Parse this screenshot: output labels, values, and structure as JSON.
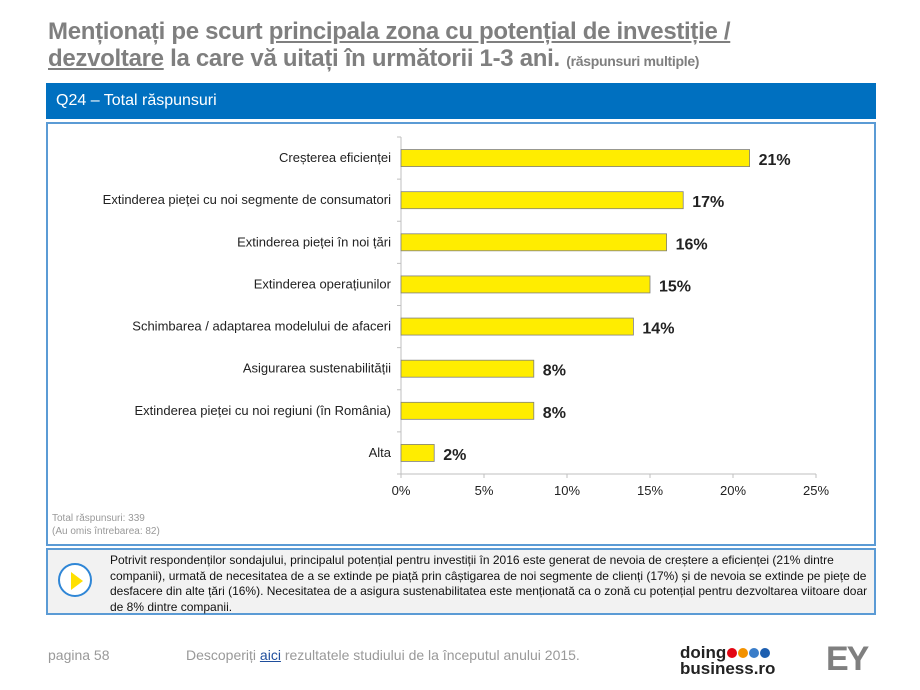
{
  "title": {
    "part1": "Menționați pe scurt ",
    "underlined1": "principala zona cu potențial de investiție / dezvoltare",
    "part2": " la care vă uitați în următorii 1-3 ani. ",
    "small": "(răspunsuri multiple)"
  },
  "header": "Q24 – Total răspunsuri",
  "notes": {
    "total": "Total răspunsuri: 339",
    "omitted": "(Au omis întrebarea:  82)"
  },
  "summary": "Potrivit respondenților sondajului, principalul potențial pentru investiții în 2016 este generat de nevoia de creștere a eficienței (21% dintre companii), urmată de necesitatea de a se extinde pe piață prin câștigarea de noi segmente de clienți (17%) și de nevoia se extinde pe piețe de desfacere din alte țări (16%). Necesitatea de a asigura sustenabilitatea este menționată ca o zonă cu potențial pentru dezvoltarea viitoare doar de 8% dintre companii.",
  "footer": {
    "page": "pagina 58",
    "text_before": "Descoperiți ",
    "link": "aici",
    "text_after": " rezultatele studiului de la începutul anului 2015.",
    "logo1": "doing business.ro",
    "logo2": "EY"
  },
  "colors": {
    "bar": "#ffed00",
    "header": "#0070c0",
    "border": "#5b9bd5",
    "logo_dots": [
      "#e30613",
      "#f39200",
      "#3a7dc9",
      "#1d5fb0"
    ]
  },
  "chart_data": {
    "type": "bar",
    "orientation": "horizontal",
    "categories": [
      "Creșterea eficienței",
      "Extinderea pieței cu noi segmente de consumatori",
      "Extinderea pieței în noi țări",
      "Extinderea operațiunilor",
      "Schimbarea / adaptarea modelului de afaceri",
      "Asigurarea sustenabilității",
      "Extinderea pieței cu noi regiuni (în România)",
      "Alta"
    ],
    "values": [
      21,
      17,
      16,
      15,
      14,
      8,
      8,
      2
    ],
    "data_labels": [
      "21%",
      "17%",
      "16%",
      "15%",
      "14%",
      "8%",
      "8%",
      "2%"
    ],
    "xlim": [
      0,
      25
    ],
    "ticks": [
      "0%",
      "5%",
      "10%",
      "15%",
      "20%",
      "25%"
    ],
    "grid": false
  }
}
